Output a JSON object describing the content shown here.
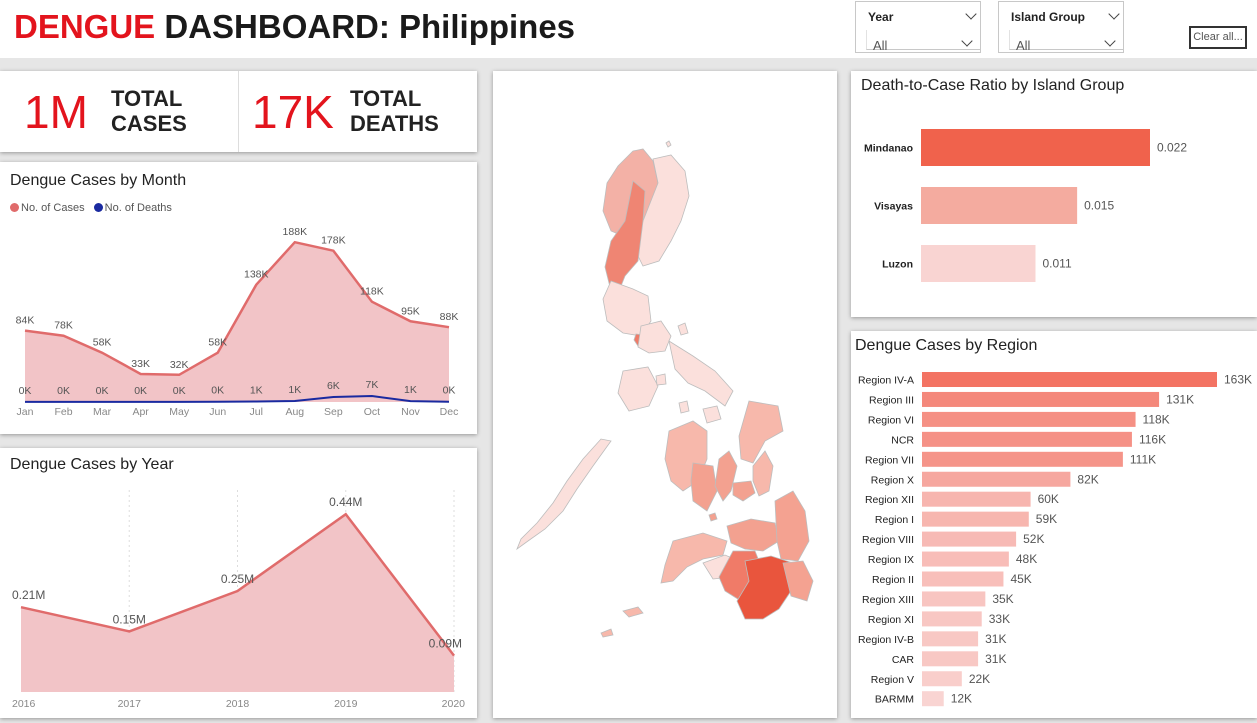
{
  "header": {
    "title_part1": "DENGUE",
    "title_part2": " DASHBOARD",
    "title_part3": ": Philippines",
    "slicers": [
      {
        "label": "Year",
        "value": "All"
      },
      {
        "label": "Island Group",
        "value": "All"
      }
    ],
    "clear_label": "Clear all..."
  },
  "kpis": [
    {
      "value": "1M",
      "label_line1": "TOTAL",
      "label_line2": "CASES"
    },
    {
      "value": "17K",
      "label_line1": "TOTAL",
      "label_line2": "DEATHS"
    }
  ],
  "colors": {
    "accent_red": "#e3141d",
    "cases_line": "#e06b6b",
    "cases_fill": "#f2c4c7",
    "deaths_line": "#1a2aa0",
    "bar_dark": "#f0624c",
    "bar_light": "#f9d4d2"
  },
  "chart_data": [
    {
      "type": "area",
      "title": "Dengue Cases by Month",
      "categories": [
        "Jan",
        "Feb",
        "Mar",
        "Apr",
        "May",
        "Jun",
        "Jul",
        "Aug",
        "Sep",
        "Oct",
        "Nov",
        "Dec"
      ],
      "series": [
        {
          "name": "No. of Cases",
          "values": [
            84,
            78,
            58,
            33,
            32,
            58,
            138,
            188,
            178,
            118,
            95,
            88
          ],
          "labels": [
            "84K",
            "78K",
            "58K",
            "33K",
            "32K",
            "58K",
            "138K",
            "188K",
            "178K",
            "118K",
            "95K",
            "88K"
          ],
          "color": "#e06b6b"
        },
        {
          "name": "No. of Deaths",
          "values": [
            0.2,
            0.2,
            0.2,
            0.2,
            0.2,
            0.3,
            0.6,
            1.2,
            5.9,
            7.0,
            1.1,
            0.3
          ],
          "labels": [
            "0K",
            "0K",
            "0K",
            "0K",
            "0K",
            "0K",
            "1K",
            "1K",
            "6K",
            "7K",
            "1K",
            "0K"
          ],
          "color": "#1a2aa0"
        }
      ],
      "units": "K",
      "ylim": [
        0,
        200
      ]
    },
    {
      "type": "area",
      "title": "Dengue Cases by Year",
      "categories": [
        "2016",
        "2017",
        "2018",
        "2019",
        "2020"
      ],
      "values": [
        0.21,
        0.15,
        0.25,
        0.44,
        0.09
      ],
      "labels": [
        "0.21M",
        "0.15M",
        "0.25M",
        "0.44M",
        "0.09M"
      ],
      "units": "M",
      "ylim": [
        0,
        0.5
      ]
    },
    {
      "type": "bar",
      "title": "Death-to-Case Ratio by Island Group",
      "categories": [
        "Mindanao",
        "Visayas",
        "Luzon"
      ],
      "values": [
        0.022,
        0.015,
        0.011
      ],
      "labels": [
        "0.022",
        "0.015",
        "0.011"
      ],
      "xlim": [
        0,
        0.022
      ]
    },
    {
      "type": "bar",
      "title": "Dengue Cases by Region",
      "categories": [
        "Region IV-A",
        "Region III",
        "Region VI",
        "NCR",
        "Region VII",
        "Region X",
        "Region XII",
        "Region I",
        "Region VIII",
        "Region IX",
        "Region II",
        "Region XIII",
        "Region XI",
        "Region IV-B",
        "CAR",
        "Region V",
        "BARMM"
      ],
      "values": [
        163,
        131,
        118,
        116,
        111,
        82,
        60,
        59,
        52,
        48,
        45,
        35,
        33,
        31,
        31,
        22,
        12
      ],
      "labels": [
        "163K",
        "131K",
        "118K",
        "116K",
        "111K",
        "82K",
        "60K",
        "59K",
        "52K",
        "48K",
        "45K",
        "35K",
        "33K",
        "31K",
        "31K",
        "22K",
        "12K"
      ],
      "units": "K",
      "xlim": [
        0,
        163
      ]
    }
  ]
}
